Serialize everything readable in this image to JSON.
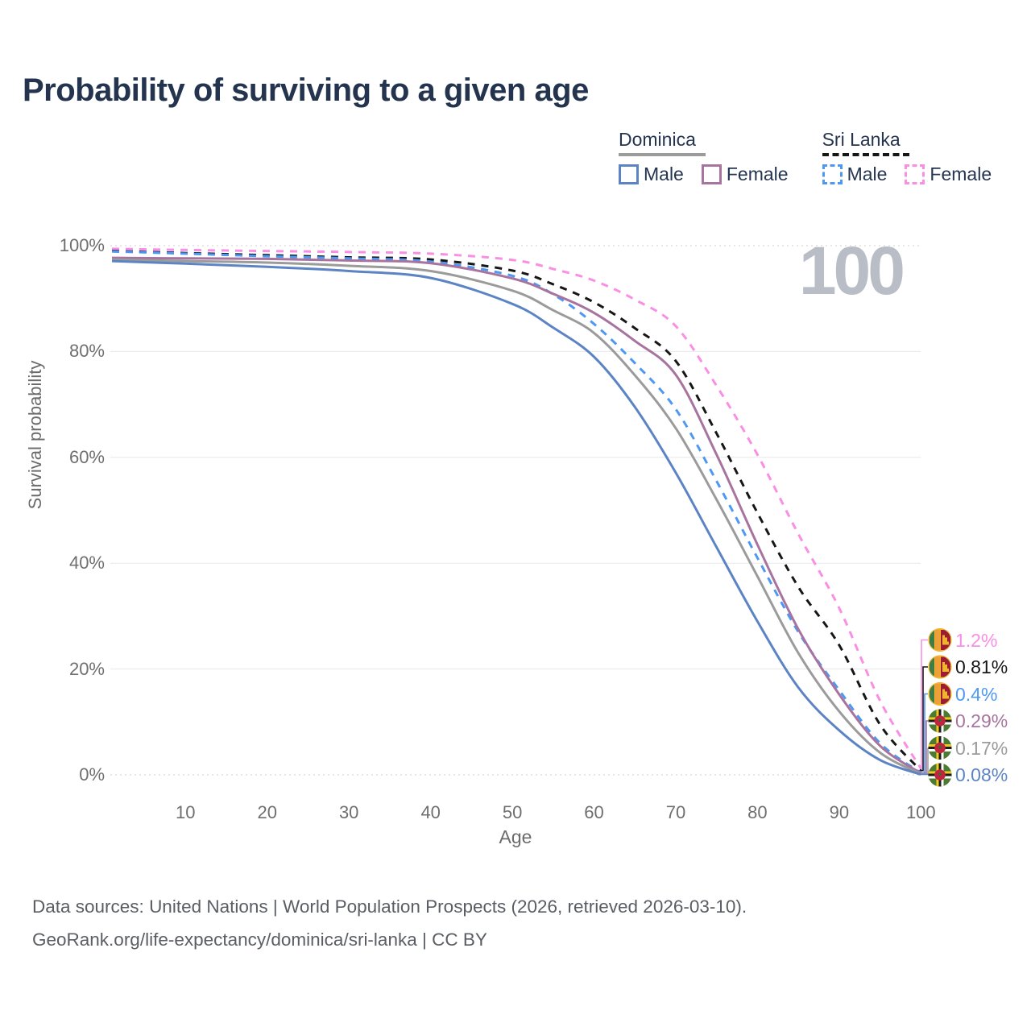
{
  "footer": {
    "line1": "Data sources: United Nations | World Population Prospects (2026, retrieved 2026-03-10).",
    "line2": "GeoRank.org/life-expectancy/dominica/sri-lanka | CC BY"
  },
  "legend": {
    "groups": [
      {
        "label": "Dominica",
        "rule_color": "#9b9b9b",
        "rule_style": "solid",
        "items": [
          {
            "label": "Male",
            "color": "#5c84c5",
            "style": "solid"
          },
          {
            "label": "Female",
            "color": "#a7739f",
            "style": "solid"
          }
        ]
      },
      {
        "label": "Sri Lanka",
        "rule_color": "#161616",
        "rule_style": "dashed",
        "items": [
          {
            "label": "Male",
            "color": "#4e98f1",
            "style": "dashed"
          },
          {
            "label": "Female",
            "color": "#f98fe5",
            "style": "dashed"
          }
        ]
      }
    ]
  },
  "chart_data": {
    "type": "line",
    "title": "Probability of surviving to a given age",
    "xlabel": "Age",
    "ylabel": "Survival probability",
    "watermark": "100",
    "xlim": [
      1,
      100
    ],
    "ylim": [
      0,
      100
    ],
    "grid": "horizontal",
    "legend_position": "top-right",
    "x_axis": {
      "ticks": [
        10,
        20,
        30,
        40,
        50,
        60,
        70,
        80,
        90,
        100
      ]
    },
    "y_axis": {
      "ticks": [
        {
          "label": "100%",
          "value": 100
        },
        {
          "label": "80%",
          "value": 80
        },
        {
          "label": "60%",
          "value": 60
        },
        {
          "label": "40%",
          "value": 40
        },
        {
          "label": "20%",
          "value": 20
        },
        {
          "label": "0%",
          "value": 0
        }
      ]
    },
    "ages": [
      1,
      10,
      20,
      30,
      40,
      50,
      55,
      60,
      65,
      70,
      75,
      80,
      85,
      90,
      95,
      100
    ],
    "series": [
      {
        "name": "Sri Lanka Female",
        "country": "Sri Lanka",
        "sex": "Female",
        "style": "dashed",
        "color": "#f98fe5",
        "flag": "sri-lanka",
        "end_label": "1.2%",
        "end_label_color": "#f98fe5",
        "values": [
          99.4,
          99.2,
          99.0,
          98.8,
          98.5,
          97.3,
          95.6,
          93.4,
          89.8,
          84.8,
          73.5,
          60.5,
          45.5,
          31.5,
          14.0,
          1.2
        ]
      },
      {
        "name": "Sri Lanka Both sexes",
        "country": "Sri Lanka",
        "sex": "Both",
        "style": "dashed",
        "color": "#161616",
        "flag": "sri-lanka",
        "end_label": "0.81%",
        "end_label_color": "#161616",
        "values": [
          99.0,
          98.6,
          98.2,
          97.8,
          97.4,
          95.3,
          92.7,
          89.3,
          84.4,
          78.2,
          64.5,
          49.5,
          35.5,
          24.5,
          9.5,
          0.81
        ]
      },
      {
        "name": "Sri Lanka Male",
        "country": "Sri Lanka",
        "sex": "Male",
        "style": "dashed",
        "color": "#4e98f1",
        "flag": "sri-lanka",
        "end_label": "0.4%",
        "end_label_color": "#4e98f1",
        "values": [
          98.9,
          98.5,
          98.0,
          97.6,
          97.0,
          94.3,
          90.8,
          85.2,
          77.8,
          69.1,
          55.5,
          41.0,
          27.0,
          16.0,
          6.0,
          0.4
        ]
      },
      {
        "name": "Dominica Female",
        "country": "Dominica",
        "sex": "Female",
        "style": "solid",
        "color": "#a7739f",
        "flag": "dominica",
        "end_label": "0.29%",
        "end_label_color": "#a7739f",
        "values": [
          97.7,
          97.6,
          97.5,
          97.2,
          96.7,
          93.8,
          90.9,
          87.3,
          82.0,
          75.6,
          60.5,
          43.5,
          27.5,
          15.2,
          5.5,
          0.29
        ]
      },
      {
        "name": "Dominica Both sexes",
        "country": "Dominica",
        "sex": "Both",
        "style": "solid",
        "color": "#9b9b9b",
        "flag": "dominica",
        "end_label": "0.17%",
        "end_label_color": "#9b9b9b",
        "values": [
          97.4,
          97.1,
          96.8,
          96.2,
          95.2,
          91.5,
          87.8,
          83.5,
          75.5,
          65.5,
          52.0,
          37.5,
          23.0,
          12.0,
          4.2,
          0.17
        ]
      },
      {
        "name": "Dominica Male",
        "country": "Dominica",
        "sex": "Male",
        "style": "solid",
        "color": "#5c84c5",
        "flag": "dominica",
        "end_label": "0.08%",
        "end_label_color": "#5c84c5",
        "values": [
          97.1,
          96.6,
          96.0,
          95.2,
          93.9,
          89.0,
          84.5,
          79.0,
          69.5,
          57.1,
          43.0,
          29.0,
          16.5,
          8.4,
          2.8,
          0.08
        ]
      }
    ]
  }
}
